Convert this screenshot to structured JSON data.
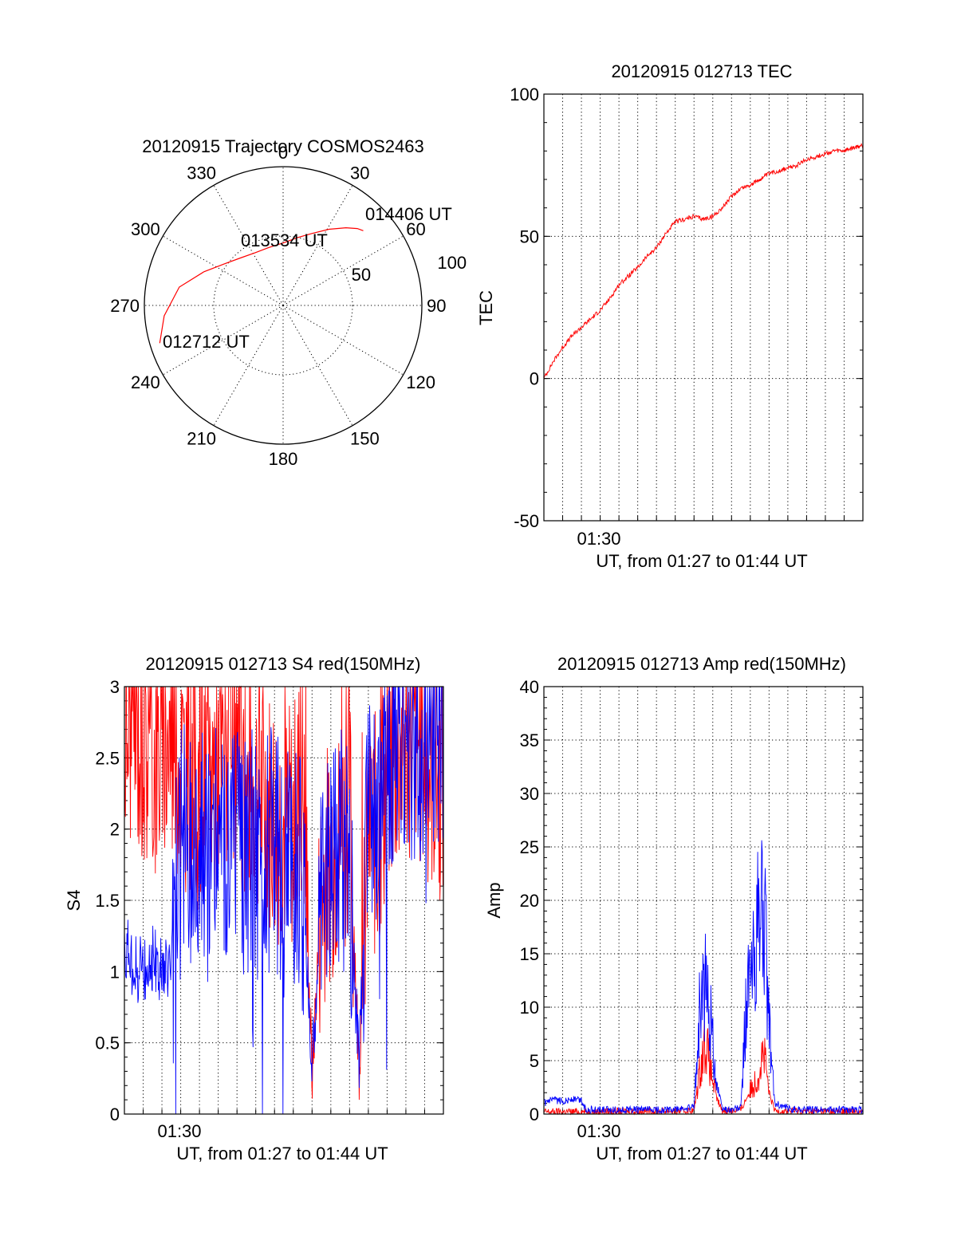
{
  "colors": {
    "red": "#ff0000",
    "blue": "#0000ff",
    "axis": "#000000"
  },
  "chart_data": [
    {
      "id": "polar",
      "type": "polar-trajectory",
      "title": "20120915 Trajectory COSMOS2463",
      "azimuth_labels": [
        "0",
        "30",
        "60",
        "90",
        "120",
        "150",
        "180",
        "210",
        "240",
        "270",
        "300",
        "330"
      ],
      "radial_labels": [
        "50",
        "100"
      ],
      "radial_ring_values": [
        50,
        100
      ],
      "trajectory": [
        {
          "az": 253,
          "r": 93
        },
        {
          "az": 265,
          "r": 86
        },
        {
          "az": 280,
          "r": 76
        },
        {
          "az": 293,
          "r": 62
        },
        {
          "az": 305,
          "r": 52
        },
        {
          "az": 318,
          "r": 46
        },
        {
          "az": 332,
          "r": 43
        },
        {
          "az": 346,
          "r": 43
        },
        {
          "az": 0,
          "r": 45
        },
        {
          "az": 12,
          "r": 50
        },
        {
          "az": 22,
          "r": 56
        },
        {
          "az": 31,
          "r": 64
        },
        {
          "az": 39,
          "r": 72
        },
        {
          "az": 44,
          "r": 77
        },
        {
          "az": 47,
          "r": 79
        }
      ],
      "annotations": [
        "014406 UT",
        "013534 UT",
        "012712 UT"
      ]
    },
    {
      "id": "tec",
      "type": "line",
      "title": "20120915 012713 TEC",
      "xlabel": "UT, from 01:27 to 01:44 UT",
      "ylabel": "TEC",
      "x_tick_labels": [
        "01:30"
      ],
      "y_tick_labels": [
        "100",
        "50",
        "0",
        "-50"
      ],
      "ylim": [
        -50,
        100
      ],
      "x_range_min": [
        0,
        17
      ],
      "series": [
        {
          "color": "red",
          "x_min": [
            0,
            0.5,
            1,
            1.5,
            2,
            2.5,
            3,
            3.5,
            4,
            4.5,
            5,
            5.5,
            6,
            6.5,
            7,
            7.5,
            8,
            8.5,
            9,
            9.5,
            10,
            10.5,
            11,
            11.5,
            12,
            12.5,
            13,
            13.5,
            14,
            14.5,
            15,
            15.5,
            16,
            16.5,
            17
          ],
          "y": [
            0,
            6,
            11,
            15,
            18,
            21,
            24,
            28,
            33,
            36,
            39,
            43,
            46,
            51,
            55,
            56,
            57,
            56,
            57,
            60,
            64,
            67,
            68,
            70,
            72,
            73,
            74,
            75,
            77,
            78,
            79,
            80,
            80,
            81,
            82
          ]
        }
      ]
    },
    {
      "id": "s4",
      "type": "line",
      "title": "20120915 012713 S4 red(150MHz)",
      "xlabel": "UT, from 01:27 to 01:44 UT",
      "ylabel": "S4",
      "x_tick_labels": [
        "01:30"
      ],
      "y_tick_labels": [
        "3",
        "2.5",
        "2",
        "1.5",
        "1",
        "0.5",
        "0"
      ],
      "ylim": [
        0,
        3
      ],
      "x_range_min": [
        0,
        17
      ],
      "series": [
        {
          "color": "red",
          "x_min": [
            0,
            0.5,
            1,
            1.5,
            2,
            2.5,
            3,
            3.5,
            4,
            4.5,
            5,
            5.5,
            6,
            6.5,
            7,
            7.5,
            8,
            8.5,
            9,
            9.5,
            10,
            10.5,
            11,
            11.5,
            12,
            12.5,
            13,
            13.5,
            14,
            14.5,
            15,
            15.5,
            16,
            16.5,
            17
          ],
          "y": [
            2.7,
            2.8,
            2.6,
            2.5,
            2.6,
            2.7,
            2.5,
            2.4,
            2.3,
            2.4,
            2.5,
            2.6,
            2.4,
            2.2,
            2.3,
            2.2,
            2.1,
            2.0,
            2.0,
            2.4,
            0.25,
            1.6,
            1.8,
            1.9,
            2.2,
            0.3,
            2.0,
            1.9,
            2.4,
            2.5,
            2.6,
            2.7,
            2.5,
            2.4,
            2.3
          ]
        },
        {
          "color": "blue",
          "x_min": [
            0,
            0.5,
            1,
            1.5,
            2,
            2.5,
            3,
            3.5,
            4,
            4.5,
            5,
            5.5,
            6,
            6.5,
            7,
            7.5,
            8,
            8.5,
            9,
            9.5,
            10,
            10.5,
            11,
            11.5,
            12,
            12.5,
            13,
            13.5,
            14,
            14.5,
            15,
            15.5,
            16,
            16.5,
            17
          ],
          "y": [
            1.2,
            1.0,
            1.0,
            1.1,
            1.0,
            1.1,
            1.8,
            1.9,
            2.0,
            1.8,
            1.9,
            1.7,
            1.8,
            1.9,
            1.8,
            1.9,
            1.8,
            1.7,
            1.8,
            1.6,
            0.3,
            1.6,
            1.7,
            1.8,
            1.8,
            0.27,
            2.2,
            2.1,
            2.6,
            2.7,
            2.8,
            2.6,
            2.7,
            2.8,
            2.7
          ]
        }
      ]
    },
    {
      "id": "amp",
      "type": "line",
      "title": "20120915 012713 Amp red(150MHz)",
      "xlabel": "UT, from 01:27 to 01:44 UT",
      "ylabel": "Amp",
      "x_tick_labels": [
        "01:30"
      ],
      "y_tick_labels": [
        "40",
        "35",
        "30",
        "25",
        "20",
        "15",
        "10",
        "5",
        "0"
      ],
      "ylim": [
        0,
        40
      ],
      "x_range_min": [
        0,
        17
      ],
      "series": [
        {
          "color": "red",
          "x_min": [
            0,
            8.0,
            8.3,
            8.6,
            8.9,
            9.2,
            9.5,
            10.5,
            10.8,
            11.1,
            11.4,
            11.7,
            12.0,
            12.3,
            17
          ],
          "y": [
            0.2,
            0.3,
            4.0,
            7.0,
            4.0,
            1.5,
            0.3,
            0.4,
            1.5,
            2.5,
            3.5,
            6.0,
            2.0,
            0.3,
            0.2
          ]
        },
        {
          "color": "blue",
          "x_min": [
            0,
            0.5,
            1,
            1.5,
            2,
            2.2,
            2.5,
            3,
            4,
            5,
            6,
            7,
            8.0,
            8.3,
            8.6,
            8.9,
            9.2,
            9.5,
            10,
            10.5,
            10.8,
            11.1,
            11.4,
            11.7,
            12.0,
            12.3,
            13,
            14,
            15,
            16,
            17
          ],
          "y": [
            1.0,
            1.3,
            1.2,
            1.4,
            1.3,
            0.5,
            0.4,
            0.4,
            0.4,
            0.4,
            0.4,
            0.4,
            0.6,
            10.0,
            12.0,
            9.0,
            3.0,
            0.5,
            0.4,
            0.6,
            11.0,
            13.0,
            17.0,
            20.0,
            8.0,
            1.0,
            0.5,
            0.4,
            0.4,
            0.4,
            0.4
          ]
        }
      ]
    }
  ]
}
